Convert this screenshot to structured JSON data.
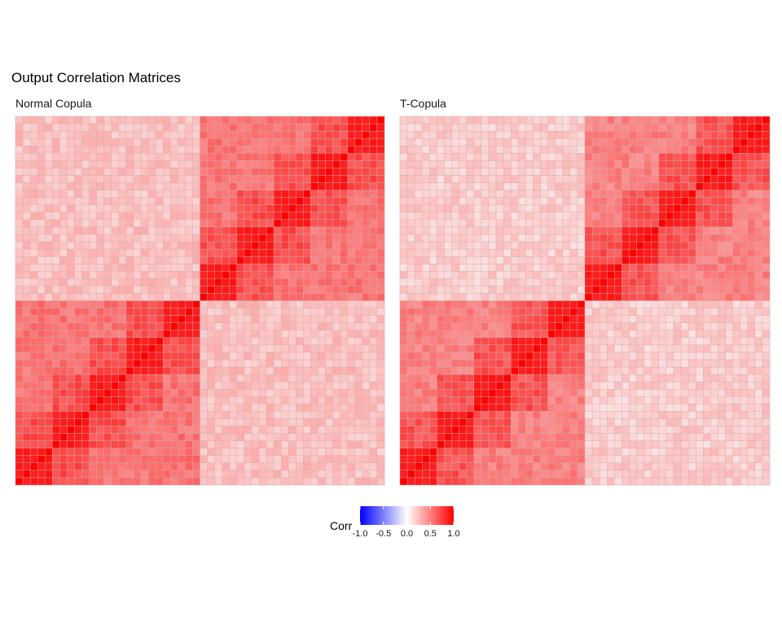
{
  "title": "Output Correlation Matrices",
  "chart_data": [
    {
      "type": "heatmap",
      "facet": "Normal Copula",
      "n": 50,
      "groups": [
        5,
        5,
        5,
        5,
        5,
        5,
        5,
        5,
        5,
        5
      ],
      "block_values": {
        "diagonal": 1.0,
        "within_group": 0.9,
        "within_half_near": 0.7,
        "within_half_far": 0.55,
        "cross_half": 0.25
      },
      "color_scale": {
        "low": "#0000ff",
        "mid": "#ffffff",
        "high": "#ff0000",
        "limits": [
          -1,
          1
        ]
      }
    },
    {
      "type": "heatmap",
      "facet": "T-Copula",
      "n": 50,
      "groups": [
        5,
        5,
        5,
        5,
        5,
        5,
        5,
        5,
        5,
        5
      ],
      "block_values": {
        "diagonal": 1.0,
        "within_group": 0.9,
        "within_half_near": 0.68,
        "within_half_far": 0.5,
        "cross_half": 0.2
      },
      "color_scale": {
        "low": "#0000ff",
        "mid": "#ffffff",
        "high": "#ff0000",
        "limits": [
          -1,
          1
        ]
      }
    }
  ],
  "legend": {
    "title": "Corr",
    "ticks": [
      "-1.0",
      "-0.5",
      "0.0",
      "0.5",
      "1.0"
    ],
    "tick_values": [
      -1,
      -0.5,
      0,
      0.5,
      1
    ]
  }
}
